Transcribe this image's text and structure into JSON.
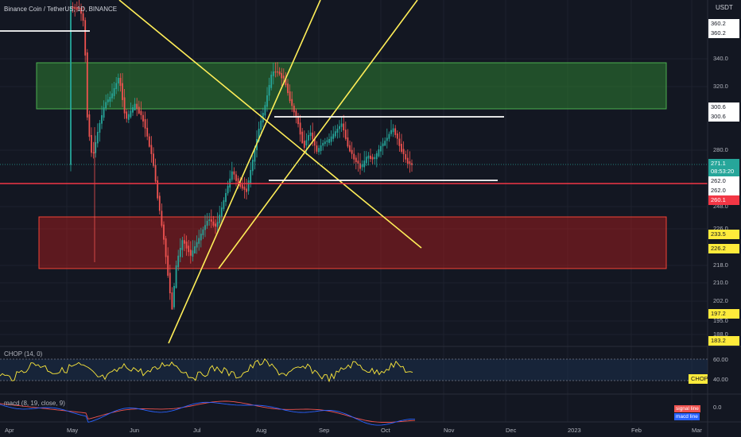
{
  "header": {
    "title": "Binance Coin / TetherUS, 1D, BINANCE",
    "currency": "USDT"
  },
  "chop_indicator": {
    "label": "CHOP (14, 0)",
    "tag_label": "CHOP",
    "levels": [
      "60.00",
      "40.00"
    ]
  },
  "macd_indicator": {
    "label": "macd (8, 19, close, 9)",
    "level": "0.0",
    "legend": [
      "signal line",
      "macd line"
    ]
  },
  "price_axis": {
    "ticks": [
      "340.0",
      "320.0",
      "280.0",
      "248.0",
      "226.0",
      "218.0",
      "210.0",
      "202.0",
      "195.0",
      "188.0"
    ],
    "tags": [
      {
        "text": "360.2",
        "style": "light"
      },
      {
        "text": "360.2",
        "style": "light"
      },
      {
        "text": "300.6",
        "style": "light"
      },
      {
        "text": "300.6",
        "style": "light"
      },
      {
        "text": "271.1",
        "style": "teal"
      },
      {
        "text": "08:53:20",
        "style": "teal"
      },
      {
        "text": "262.0",
        "style": "light"
      },
      {
        "text": "262.0",
        "style": "light"
      },
      {
        "text": "260.1",
        "style": "red"
      },
      {
        "text": "233.5",
        "style": "yellow"
      },
      {
        "text": "226.2",
        "style": "yellow"
      },
      {
        "text": "197.2",
        "style": "yellow"
      },
      {
        "text": "183.2",
        "style": "yellow"
      }
    ]
  },
  "time_axis": {
    "labels": [
      "Apr",
      "May",
      "Jun",
      "Jul",
      "Aug",
      "Sep",
      "Oct",
      "Nov",
      "Dec",
      "2023",
      "Feb",
      "Mar"
    ]
  },
  "colors": {
    "background": "#131722",
    "up_candle": "#26a69a",
    "down_candle": "#ef5350",
    "green_zone": "#2e7d32",
    "red_zone": "#b71c1c",
    "trendline": "#ffee58",
    "support": "#ffffff",
    "current_line": "#f23645",
    "chop_line": "#ffeb3b",
    "signal_line": "#ef5350",
    "macd_line": "#2962ff"
  }
}
